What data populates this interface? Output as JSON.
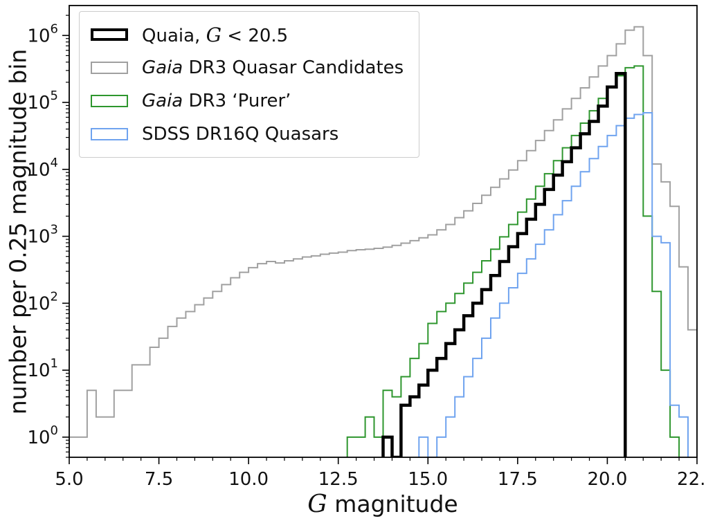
{
  "chart_data": {
    "type": "histogram-step",
    "title": "",
    "ylabel": "number per 0.25 magnitude bin",
    "xlabel_segments": [
      {
        "text": "G",
        "style": "math-italic"
      },
      {
        "text": " magnitude",
        "style": "normal"
      }
    ],
    "xlim": [
      5.0,
      22.5
    ],
    "ylim": [
      0.5,
      2800000
    ],
    "yscale": "log",
    "grid": false,
    "legend_position": "upper-left",
    "bin_width": 0.25,
    "x_ticks": [
      5.0,
      7.5,
      10.0,
      12.5,
      15.0,
      17.5,
      20.0,
      22.5
    ],
    "x_tick_labels": [
      "5.0",
      "7.5",
      "10.0",
      "12.5",
      "15.0",
      "17.5",
      "20.0",
      "22.5"
    ],
    "y_tick_exponents": [
      0,
      1,
      2,
      3,
      4,
      5,
      6
    ],
    "series": [
      {
        "id": "quaia",
        "label_segments": [
          {
            "text": "Quaia, ",
            "style": "normal"
          },
          {
            "text": "G",
            "style": "math-italic"
          },
          {
            "text": " < 20.5",
            "style": "normal"
          }
        ],
        "color": "#000000",
        "line_width": 4.5,
        "zorder": 4,
        "bin_start": 13.75,
        "values": [
          1,
          0,
          3,
          4,
          6,
          10,
          15,
          25,
          40,
          65,
          100,
          160,
          260,
          420,
          700,
          1100,
          1800,
          3000,
          5000,
          8200,
          13000,
          21000,
          34000,
          52000,
          88000,
          170000,
          270000
        ]
      },
      {
        "id": "gaia-candidates",
        "label_segments": [
          {
            "text": "Gaia",
            "style": "italic"
          },
          {
            "text": " DR3 Quasar Candidates",
            "style": "normal"
          }
        ],
        "color": "#a0a0a0",
        "line_width": 2,
        "zorder": 1,
        "bin_start": 5.0,
        "values": [
          1,
          1,
          5,
          2,
          2,
          5,
          5,
          12,
          12,
          22,
          30,
          45,
          60,
          75,
          95,
          120,
          150,
          190,
          240,
          290,
          340,
          390,
          420,
          400,
          430,
          460,
          490,
          510,
          540,
          560,
          580,
          610,
          630,
          640,
          660,
          690,
          730,
          790,
          860,
          950,
          1050,
          1250,
          1500,
          1900,
          2400,
          3100,
          4100,
          5400,
          7200,
          9800,
          13500,
          19000,
          27000,
          38000,
          55000,
          80000,
          115000,
          165000,
          240000,
          350000,
          500000,
          750000,
          1200000,
          1350000,
          500000,
          12000,
          6500,
          2800,
          350,
          40
        ]
      },
      {
        "id": "gaia-purer",
        "label_segments": [
          {
            "text": "Gaia",
            "style": "italic"
          },
          {
            "text": " DR3 ‘Purer’",
            "style": "normal"
          }
        ],
        "color": "#2e962e",
        "line_width": 2,
        "zorder": 2,
        "bin_start": 12.75,
        "values": [
          1,
          1,
          2,
          1,
          5,
          4,
          8,
          15,
          25,
          50,
          75,
          100,
          140,
          200,
          290,
          430,
          640,
          980,
          1500,
          2300,
          3600,
          5600,
          8600,
          13500,
          21000,
          32000,
          49000,
          75000,
          115000,
          170000,
          250000,
          330000,
          350000,
          2000,
          150,
          10,
          1
        ]
      },
      {
        "id": "sdss",
        "label_segments": [
          {
            "text": "SDSS DR16Q Quasars",
            "style": "normal"
          }
        ],
        "color": "#6fa3ef",
        "line_width": 2,
        "zorder": 3,
        "bin_start": 14.75,
        "values": [
          1,
          0,
          1,
          2,
          4,
          8,
          15,
          30,
          60,
          100,
          170,
          280,
          460,
          760,
          1250,
          2100,
          3400,
          5600,
          9200,
          14500,
          22000,
          32000,
          45000,
          58000,
          66000,
          70000,
          1000,
          800,
          3,
          2
        ]
      }
    ]
  }
}
